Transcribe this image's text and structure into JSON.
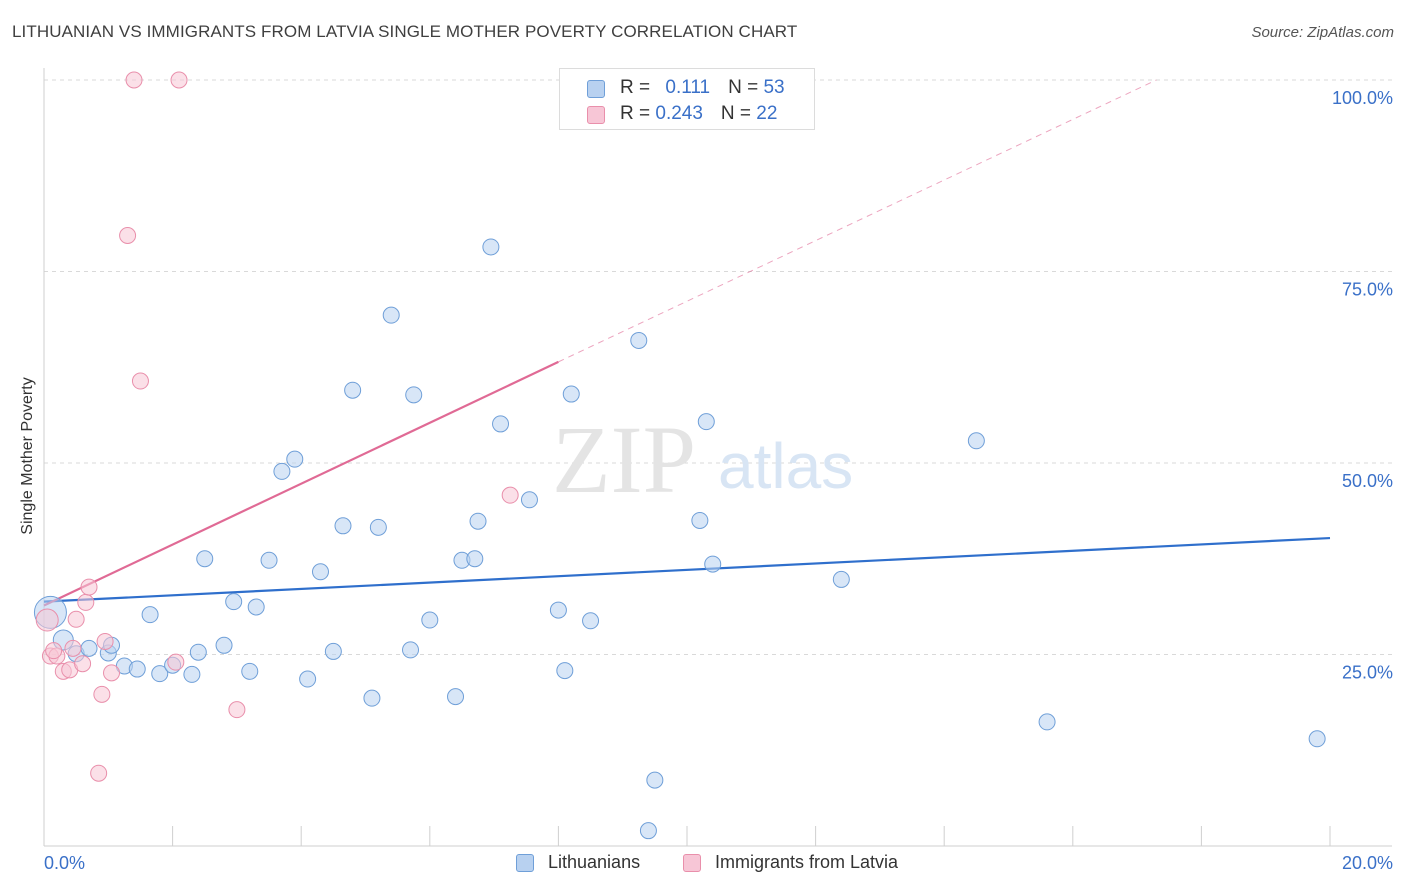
{
  "header": {
    "title": "LITHUANIAN VS IMMIGRANTS FROM LATVIA SINGLE MOTHER POVERTY CORRELATION CHART",
    "source": "Source: ZipAtlas.com"
  },
  "watermark": {
    "zip": "ZIP",
    "atlas": "atlas"
  },
  "colors": {
    "blue_fill": "#b8d1f0",
    "blue_stroke": "#6f9fd8",
    "blue_line": "#2f6fcc",
    "pink_fill": "#f7c6d6",
    "pink_stroke": "#e98fab",
    "pink_line": "#e06a95",
    "tick_text": "#3a70c8",
    "grid": "#d9d9d9"
  },
  "legend_top": [
    {
      "r_label": "R = ",
      "r_value": "0.111",
      "n_label": "N = ",
      "n_value": "53"
    },
    {
      "r_label": "R = ",
      "r_value": "0.243",
      "n_label": "N = ",
      "n_value": "22"
    }
  ],
  "legend_bottom": [
    "Lithuanians",
    "Immigrants from Latvia"
  ],
  "chart_data": {
    "type": "scatter",
    "title": "LITHUANIAN VS IMMIGRANTS FROM LATVIA SINGLE MOTHER POVERTY CORRELATION CHART",
    "xlabel": "",
    "ylabel": "Single Mother Poverty",
    "xlim": [
      0,
      20
    ],
    "ylim": [
      0,
      100
    ],
    "x_tick_labels": {
      "min": "0.0%",
      "max": "20.0%"
    },
    "x_minor_ticks": [
      2,
      4,
      6,
      8,
      10,
      12,
      14,
      16,
      18,
      20
    ],
    "y_ticks": [
      {
        "value": 25,
        "label": "25.0%"
      },
      {
        "value": 50,
        "label": "50.0%"
      },
      {
        "value": 75,
        "label": "75.0%"
      },
      {
        "value": 100,
        "label": "100.0%"
      }
    ],
    "grid": "horizontal dashed",
    "legend_position": "top-center",
    "series": [
      {
        "name": "Lithuanians",
        "color": "#6f9fd8",
        "trend": {
          "x": [
            0,
            20
          ],
          "y": [
            31.9,
            40.2
          ]
        },
        "points": [
          [
            0.1,
            30.5
          ],
          [
            0.3,
            26.9
          ],
          [
            0.5,
            25.1
          ],
          [
            0.7,
            25.8
          ],
          [
            1.0,
            25.2
          ],
          [
            1.05,
            26.2
          ],
          [
            1.25,
            23.5
          ],
          [
            1.45,
            23.1
          ],
          [
            1.65,
            30.2
          ],
          [
            1.8,
            22.5
          ],
          [
            2.0,
            23.6
          ],
          [
            2.3,
            22.4
          ],
          [
            2.4,
            25.3
          ],
          [
            2.5,
            37.5
          ],
          [
            2.8,
            26.2
          ],
          [
            2.95,
            31.9
          ],
          [
            3.2,
            22.8
          ],
          [
            3.3,
            31.2
          ],
          [
            3.5,
            37.3
          ],
          [
            3.7,
            48.9
          ],
          [
            3.9,
            50.5
          ],
          [
            4.1,
            21.8
          ],
          [
            4.3,
            35.8
          ],
          [
            4.5,
            25.4
          ],
          [
            4.65,
            41.8
          ],
          [
            4.8,
            59.5
          ],
          [
            5.1,
            19.3
          ],
          [
            5.2,
            41.6
          ],
          [
            5.4,
            69.3
          ],
          [
            5.7,
            25.6
          ],
          [
            5.75,
            58.9
          ],
          [
            6.0,
            29.5
          ],
          [
            6.4,
            19.5
          ],
          [
            6.5,
            37.3
          ],
          [
            6.7,
            37.5
          ],
          [
            6.75,
            42.4
          ],
          [
            6.95,
            78.2
          ],
          [
            7.1,
            55.1
          ],
          [
            7.55,
            45.2
          ],
          [
            8.0,
            30.8
          ],
          [
            8.1,
            22.9
          ],
          [
            8.2,
            59.0
          ],
          [
            8.5,
            29.4
          ],
          [
            9.25,
            66.0
          ],
          [
            9.4,
            2.0
          ],
          [
            9.5,
            8.6
          ],
          [
            10.2,
            42.5
          ],
          [
            10.3,
            55.4
          ],
          [
            10.4,
            36.8
          ],
          [
            12.4,
            34.8
          ],
          [
            14.5,
            52.9
          ],
          [
            15.6,
            16.2
          ],
          [
            19.8,
            14.0
          ]
        ]
      },
      {
        "name": "Immigrants from Latvia",
        "color": "#e98fab",
        "trend": {
          "x": [
            0,
            8.0
          ],
          "y": [
            31.4,
            63.2
          ]
        },
        "trend_extension": {
          "x": [
            8.0,
            17.3
          ],
          "y": [
            63.2,
            100.0
          ]
        },
        "points": [
          [
            0.05,
            29.5
          ],
          [
            0.1,
            24.8
          ],
          [
            0.2,
            24.8
          ],
          [
            0.3,
            22.8
          ],
          [
            0.4,
            23.0
          ],
          [
            0.45,
            25.8
          ],
          [
            0.5,
            29.6
          ],
          [
            0.6,
            23.8
          ],
          [
            0.65,
            31.8
          ],
          [
            0.7,
            33.8
          ],
          [
            0.85,
            9.5
          ],
          [
            0.9,
            19.8
          ],
          [
            0.95,
            26.7
          ],
          [
            1.05,
            22.6
          ],
          [
            1.3,
            79.7
          ],
          [
            1.4,
            100.0
          ],
          [
            1.5,
            60.7
          ],
          [
            2.05,
            24.0
          ],
          [
            2.1,
            100.0
          ],
          [
            3.0,
            17.8
          ],
          [
            7.25,
            45.8
          ],
          [
            0.15,
            25.5
          ]
        ]
      }
    ]
  }
}
